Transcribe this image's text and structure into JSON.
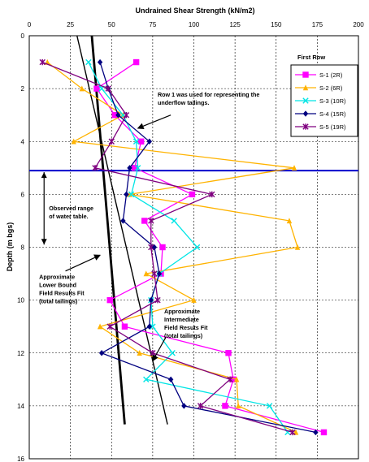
{
  "chart_data": {
    "type": "line",
    "title": "Undrained Shear Strength (kN/m2)",
    "xlabel": "Undrained Shear Strength (kN/m2)",
    "ylabel": "Depth (m bgs)",
    "xlim": [
      0,
      200
    ],
    "ylim": [
      0,
      16
    ],
    "x_inverted": false,
    "y_inverted": true,
    "x_ticks": [
      0,
      25,
      50,
      75,
      100,
      125,
      150,
      175,
      200
    ],
    "y_ticks": [
      0,
      2,
      4,
      6,
      8,
      10,
      12,
      14,
      16
    ],
    "grid": "dashed",
    "legend_title": "First Row",
    "legend_position": "top-right",
    "series": [
      {
        "name": "S-1 (2R)",
        "color": "#ff00ff",
        "marker": "square",
        "points": [
          [
            65,
            1
          ],
          [
            41,
            2
          ],
          [
            52,
            3
          ],
          [
            68,
            4
          ],
          [
            64,
            5
          ],
          [
            99,
            6
          ],
          [
            70,
            7
          ],
          [
            81,
            8
          ],
          [
            80,
            9
          ],
          [
            49,
            10
          ],
          [
            58,
            11
          ],
          [
            121,
            12
          ],
          [
            124,
            13
          ],
          [
            119,
            14
          ],
          [
            179,
            15
          ]
        ]
      },
      {
        "name": "S-2 (6R)",
        "color": "#ffb300",
        "marker": "triangle",
        "points": [
          [
            11,
            1
          ],
          [
            32,
            2
          ],
          [
            57,
            3
          ],
          [
            27,
            4
          ],
          [
            161,
            5
          ],
          [
            61,
            6
          ],
          [
            158,
            7
          ],
          [
            163,
            8
          ],
          [
            71,
            9
          ],
          [
            100,
            10
          ],
          [
            43,
            11
          ],
          [
            67,
            12
          ],
          [
            126,
            13
          ],
          [
            127,
            14
          ],
          [
            162,
            15
          ]
        ]
      },
      {
        "name": "S-3 (10R)",
        "color": "#00e5e5",
        "marker": "x",
        "points": [
          [
            36,
            1
          ],
          [
            44,
            2
          ],
          [
            57,
            3
          ],
          [
            65,
            4
          ],
          [
            66,
            5
          ],
          [
            62,
            6
          ],
          [
            88,
            7
          ],
          [
            102,
            8
          ],
          [
            79,
            9
          ],
          [
            74,
            10
          ],
          [
            75,
            11
          ],
          [
            87,
            12
          ],
          [
            71,
            13
          ],
          [
            146,
            14
          ],
          [
            157,
            15
          ]
        ]
      },
      {
        "name": "S-4 (15R)",
        "color": "#000080",
        "marker": "diamond",
        "points": [
          [
            43,
            1
          ],
          [
            48,
            2
          ],
          [
            54,
            3
          ],
          [
            73,
            4
          ],
          [
            61,
            5
          ],
          [
            59,
            6
          ],
          [
            57,
            7
          ],
          [
            76,
            8
          ],
          [
            79,
            9
          ],
          [
            74,
            10
          ],
          [
            73,
            11
          ],
          [
            44,
            12
          ],
          [
            86,
            13
          ],
          [
            94,
            14
          ],
          [
            174,
            15
          ]
        ]
      },
      {
        "name": "S-5 (19R)",
        "color": "#7f007f",
        "marker": "star",
        "points": [
          [
            8,
            1
          ],
          [
            48,
            2
          ],
          [
            59,
            3
          ],
          [
            50,
            4
          ],
          [
            40,
            5
          ],
          [
            111,
            6
          ],
          [
            74,
            7
          ],
          [
            74,
            8
          ],
          [
            76,
            9
          ],
          [
            78,
            10
          ],
          [
            49,
            11
          ],
          [
            75,
            12
          ],
          [
            122,
            13
          ],
          [
            104,
            14
          ],
          [
            160,
            15
          ]
        ]
      }
    ],
    "fit_lines": [
      {
        "name": "Approximate Lower Bound Field Results Fit (total tailings)",
        "color": "#000000",
        "width": "thick",
        "from": [
          38,
          0
        ],
        "to": [
          58,
          14.7
        ]
      },
      {
        "name": "Approximate Intermediate Field Results Fit (total tailings)",
        "color": "#000000",
        "width": "thin",
        "from": [
          29,
          0
        ],
        "to": [
          84,
          14.7
        ]
      }
    ],
    "reference_lines": [
      {
        "label": "Observed range of water table.",
        "type": "horizontal",
        "y": 5.1,
        "color": "#0000cc"
      }
    ],
    "annotations": [
      {
        "lines": [
          "Row 1 was used for representing the",
          "underflow tailings."
        ],
        "text_at": [
          78,
          2.3
        ],
        "arrow_from": [
          86,
          3.0
        ],
        "arrow_to": [
          66,
          3.5
        ]
      },
      {
        "lines": [
          "Observed range",
          "of water table."
        ],
        "text_at": [
          12,
          6.6
        ]
      },
      {
        "lines": [
          "Approximate",
          "Lower Bound",
          "Field Results Fit",
          "(total tailings)"
        ],
        "text_at": [
          6,
          9.2
        ],
        "arrow_from": [
          22,
          8.9
        ],
        "arrow_to": [
          43,
          8.3
        ]
      },
      {
        "lines": [
          "Approximate",
          "Intermediate",
          "Field Resuts Fit",
          "(total tailings)"
        ],
        "text_at": [
          82,
          10.5
        ],
        "arrow_from": [
          83,
          11.4
        ],
        "arrow_to": [
          75,
          12.3
        ]
      }
    ],
    "water_table_range": [
      5.1,
      7.9
    ]
  }
}
